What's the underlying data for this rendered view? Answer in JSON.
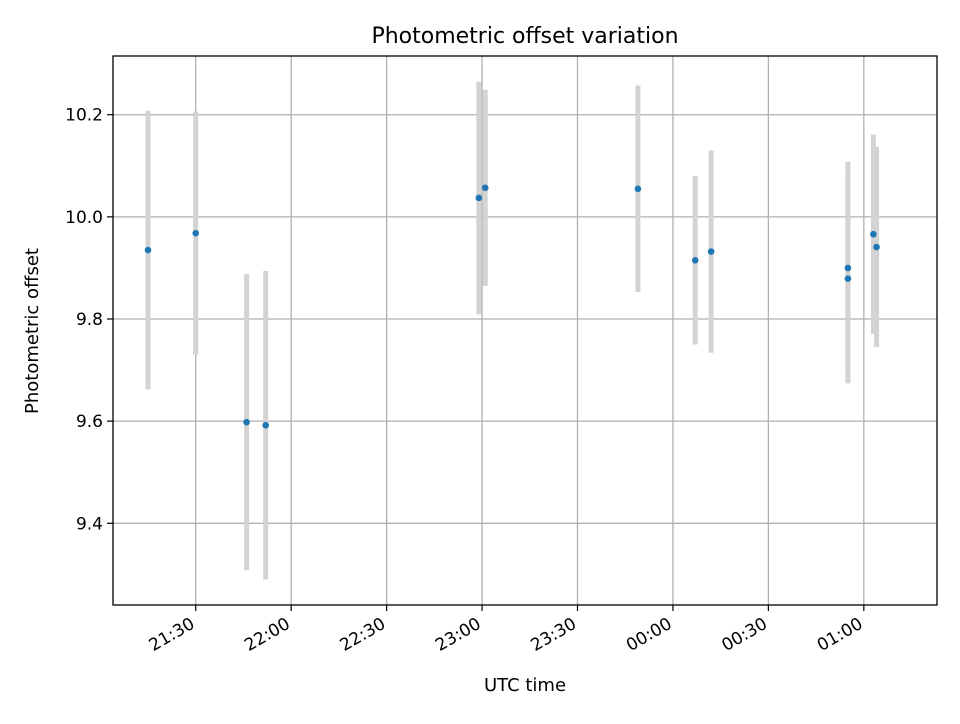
{
  "chart_data": {
    "type": "scatter",
    "title": "Photometric offset variation",
    "xlabel": "UTC time",
    "ylabel": "Photometric offset",
    "x_tick_labels": [
      "21:30",
      "22:00",
      "22:30",
      "23:00",
      "23:30",
      "00:00",
      "00:30",
      "01:00"
    ],
    "y_tick_labels": [
      "9.4",
      "9.6",
      "9.8",
      "10.0",
      "10.2"
    ],
    "y_ticks": [
      9.4,
      9.6,
      9.8,
      10.0,
      10.2
    ],
    "xlim": [
      "21:04",
      "01:23"
    ],
    "ylim": [
      9.24,
      10.315
    ],
    "grid": true,
    "marker_color": "#1f77b4",
    "errorbar_color": "#d3d3d3",
    "series": [
      {
        "points": [
          {
            "x": "21:15",
            "y": 9.935,
            "err": 0.273
          },
          {
            "x": "21:30",
            "y": 9.968,
            "err": 0.238
          },
          {
            "x": "21:46",
            "y": 9.598,
            "err": 0.29
          },
          {
            "x": "21:52",
            "y": 9.592,
            "err": 0.302
          },
          {
            "x": "22:59",
            "y": 10.037,
            "err": 0.228
          },
          {
            "x": "23:01",
            "y": 10.057,
            "err": 0.192
          },
          {
            "x": "23:49",
            "y": 10.055,
            "err": 0.202
          },
          {
            "x": "00:07",
            "y": 9.915,
            "err": 0.165
          },
          {
            "x": "00:12",
            "y": 9.932,
            "err": 0.198
          },
          {
            "x": "00:55",
            "y": 9.9,
            "err": 0.208
          },
          {
            "x": "00:55",
            "y": 9.879,
            "err": 0.205
          },
          {
            "x": "01:03",
            "y": 9.966,
            "err": 0.195
          },
          {
            "x": "01:04",
            "y": 9.941,
            "err": 0.196
          }
        ]
      }
    ]
  }
}
